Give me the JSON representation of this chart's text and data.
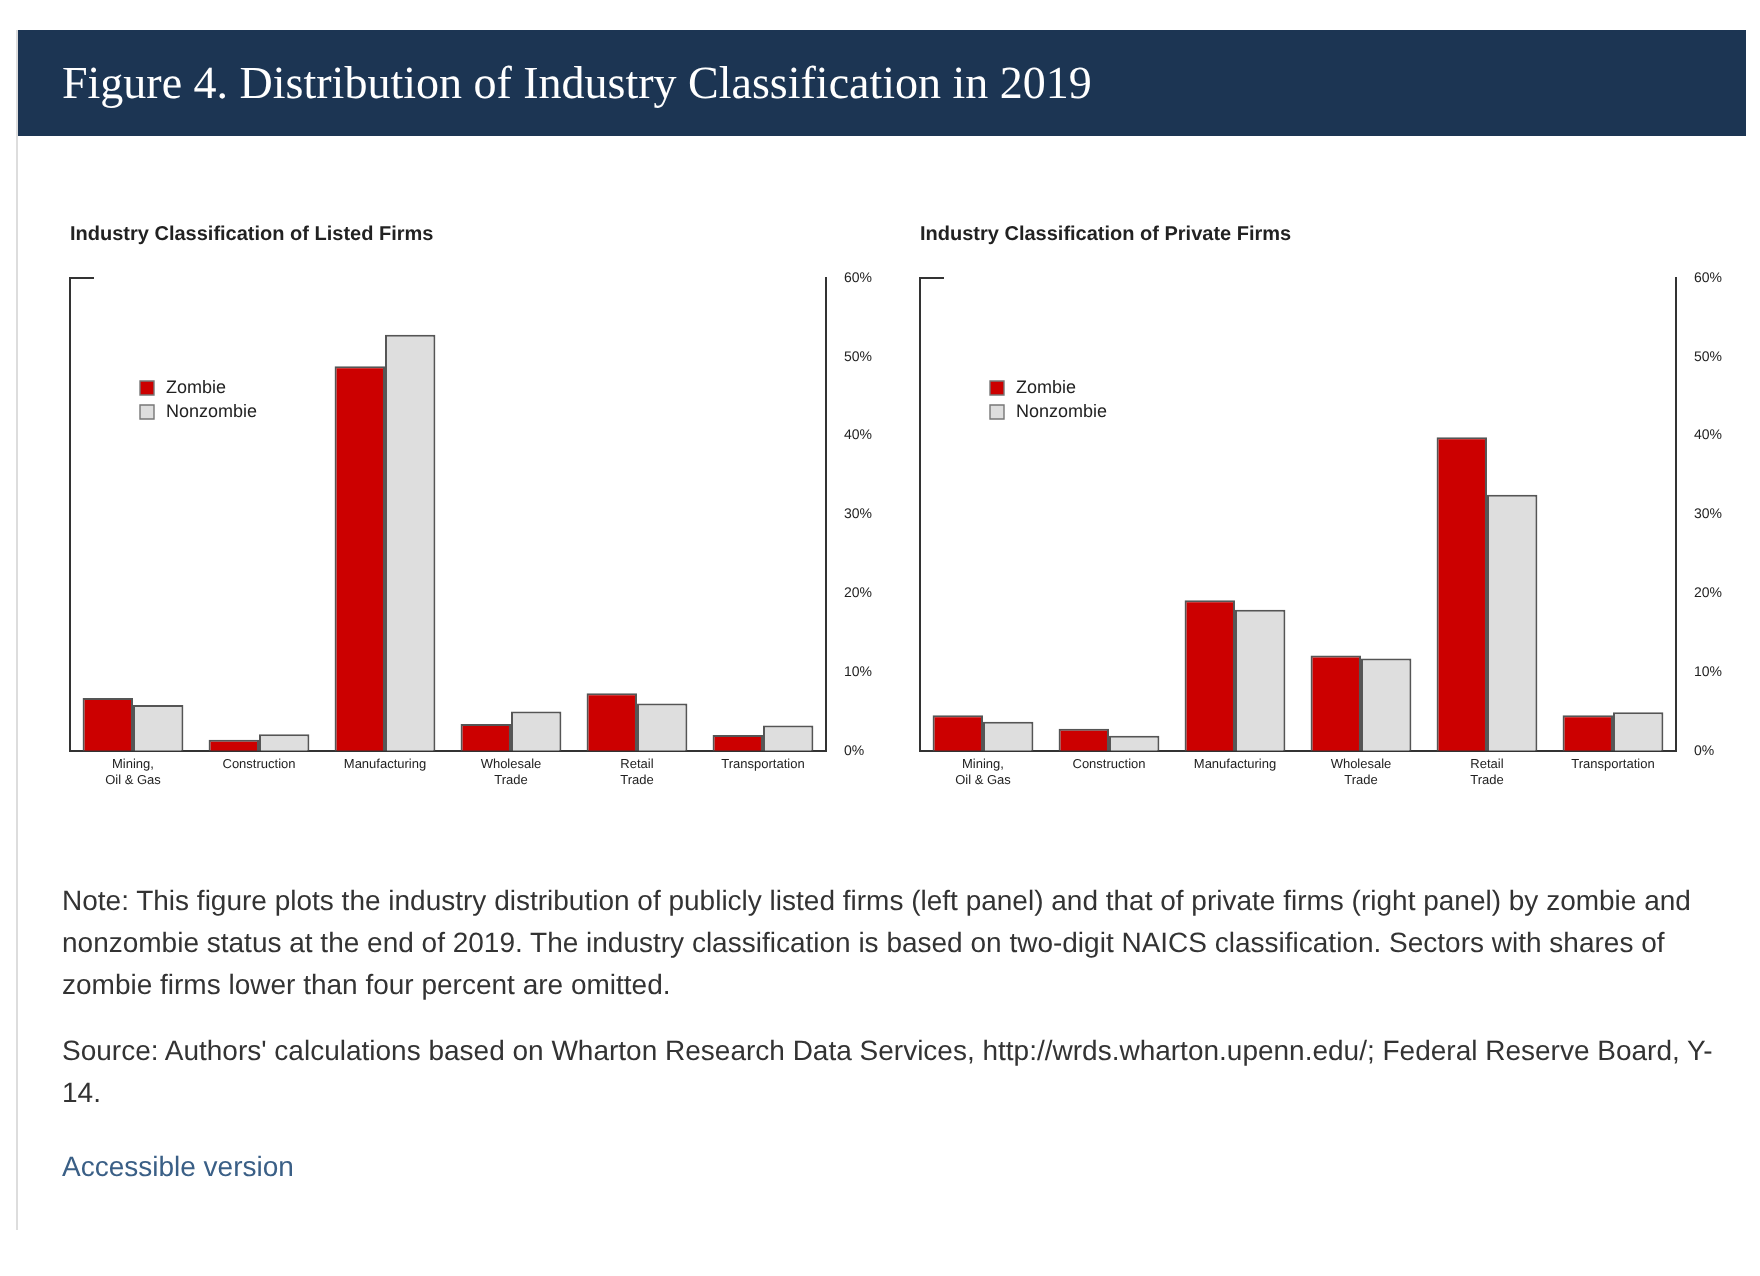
{
  "chart_data": [
    {
      "type": "other",
      "title": "Figure 4. Distribution of Industry Classification in 2019"
    },
    {
      "type": "bar",
      "title": "Industry Classification of Listed Firms",
      "categories": [
        "Mining,\nOil & Gas",
        "Construction",
        "Manufacturing",
        "Wholesale\nTrade",
        "Retail\nTrade",
        "Transportation"
      ],
      "series": [
        {
          "name": "Zombie",
          "color": "#cc0000",
          "values": [
            6.7,
            1.4,
            48.8,
            3.4,
            7.3,
            2.0
          ]
        },
        {
          "name": "Nonzombie",
          "color": "#dedede",
          "values": [
            5.8,
            2.1,
            52.8,
            5.0,
            6.0,
            3.2
          ]
        }
      ],
      "ylim": [
        0,
        60
      ],
      "yticks": [
        {
          "value": 0,
          "label": "0%"
        },
        {
          "value": 10,
          "label": "10%"
        },
        {
          "value": 20,
          "label": "20%"
        },
        {
          "value": 30,
          "label": "30%"
        },
        {
          "value": 40,
          "label": "40%"
        },
        {
          "value": 50,
          "label": "50%"
        },
        {
          "value": 60,
          "label": "60%"
        }
      ],
      "grid": false,
      "legend": "top left"
    },
    {
      "type": "bar",
      "title": "Industry Classification of Private Firms",
      "categories": [
        "Mining,\nOil & Gas",
        "Construction",
        "Manufacturing",
        "Wholesale\nTrade",
        "Retail\nTrade",
        "Transportation"
      ],
      "series": [
        {
          "name": "Zombie",
          "color": "#cc0000",
          "values": [
            4.5,
            2.8,
            19.1,
            12.1,
            39.8,
            4.5
          ]
        },
        {
          "name": "Nonzombie",
          "color": "#dedede",
          "values": [
            3.7,
            1.9,
            17.9,
            11.7,
            32.5,
            4.9
          ]
        }
      ],
      "ylim": [
        0,
        60
      ],
      "yticks": [
        {
          "value": 0,
          "label": "0%"
        },
        {
          "value": 10,
          "label": "10%"
        },
        {
          "value": 20,
          "label": "20%"
        },
        {
          "value": 30,
          "label": "30%"
        },
        {
          "value": 40,
          "label": "40%"
        },
        {
          "value": 50,
          "label": "50%"
        },
        {
          "value": 60,
          "label": "60%"
        }
      ],
      "grid": false,
      "legend": "top left"
    },
    {
      "type": "other",
      "annotations": [
        "Note: This figure plots the industry distribution of publicly listed firms (left panel) and that of private firms (right panel) by zombie and nonzombie status at the end of 2019. The industry classification is based on two-digit NAICS classification. Sectors with shares of zombie firms lower than four percent are omitted.",
        "Source: Authors' calculations based on Wharton Research Data Services, http://wrds.wharton.upenn.edu/; Federal Reserve Board, Y-14.",
        "Accessible version"
      ]
    }
  ]
}
